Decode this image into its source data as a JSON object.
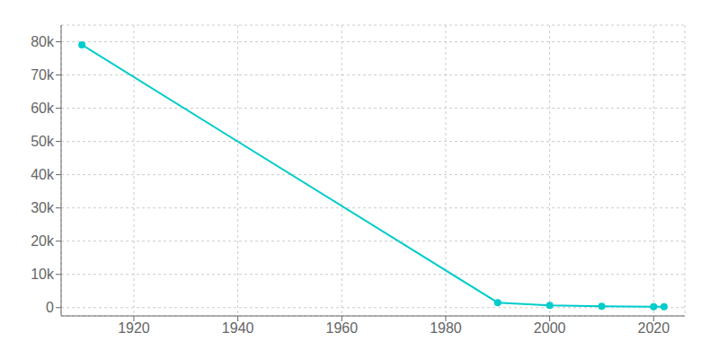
{
  "chart_data": {
    "type": "line",
    "x": [
      1910,
      1990,
      2000,
      2010,
      2020,
      2022
    ],
    "values": [
      79066,
      1500,
      700,
      400,
      300,
      280
    ],
    "color": "#00CCCC",
    "marker": "circle",
    "xlim": [
      1906,
      2026
    ],
    "xticks": [
      1920,
      1940,
      1960,
      1980,
      2000,
      2020
    ],
    "ylim": [
      -2500,
      85000
    ],
    "yticks": [
      0,
      {
        "value": 10000,
        "label": "10k"
      },
      {
        "value": 20000,
        "label": "20k"
      },
      {
        "value": 30000,
        "label": "30k"
      },
      {
        "value": 40000,
        "label": "40k"
      },
      {
        "value": 50000,
        "label": "50k"
      },
      {
        "value": 60000,
        "label": "60k"
      },
      {
        "value": 70000,
        "label": "70k"
      },
      {
        "value": 80000,
        "label": "80k"
      }
    ],
    "grid": true
  }
}
